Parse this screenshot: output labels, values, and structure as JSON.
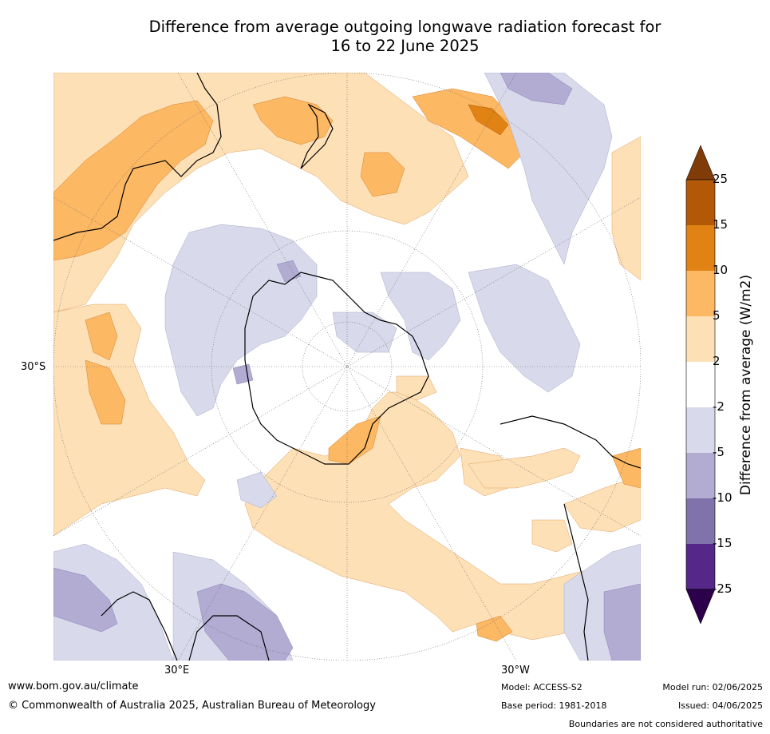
{
  "title_line1": "Difference from average outgoing longwave radiation forecast for",
  "title_line2": "16 to 22 June 2025",
  "map": {
    "projection": "south polar stereographic",
    "labels": {
      "lat_30s": "30°S",
      "lon_30e": "30°E",
      "lon_30w": "30°W"
    }
  },
  "colorbar": {
    "title": "Difference from average (W/m2)",
    "ticks": [
      "25",
      "15",
      "10",
      "5",
      "2",
      "-2",
      "-5",
      "-10",
      "-15",
      "-25"
    ],
    "colors": {
      "over": "#7f3b08",
      "b15_25": "#b35806",
      "b10_15": "#e08214",
      "b5_10": "#fdb863",
      "b2_5": "#fee0b6",
      "b_neutral": "#ffffff",
      "bm5_m2": "#d8daeb",
      "bm10_m5": "#b2abd2",
      "bm15_m10": "#8073ac",
      "bm25_m15": "#542788",
      "under": "#2d004b"
    }
  },
  "footer": {
    "url": "www.bom.gov.au/climate",
    "copyright": "© Commonwealth of Australia 2025, Australian Bureau of Meteorology",
    "model": "Model: ACCESS-S2",
    "base_period": "Base period: 1981-2018",
    "model_run": "Model run: 02/06/2025",
    "issued": "Issued: 04/06/2025",
    "disclaimer": "Boundaries are not considered authoritative"
  }
}
